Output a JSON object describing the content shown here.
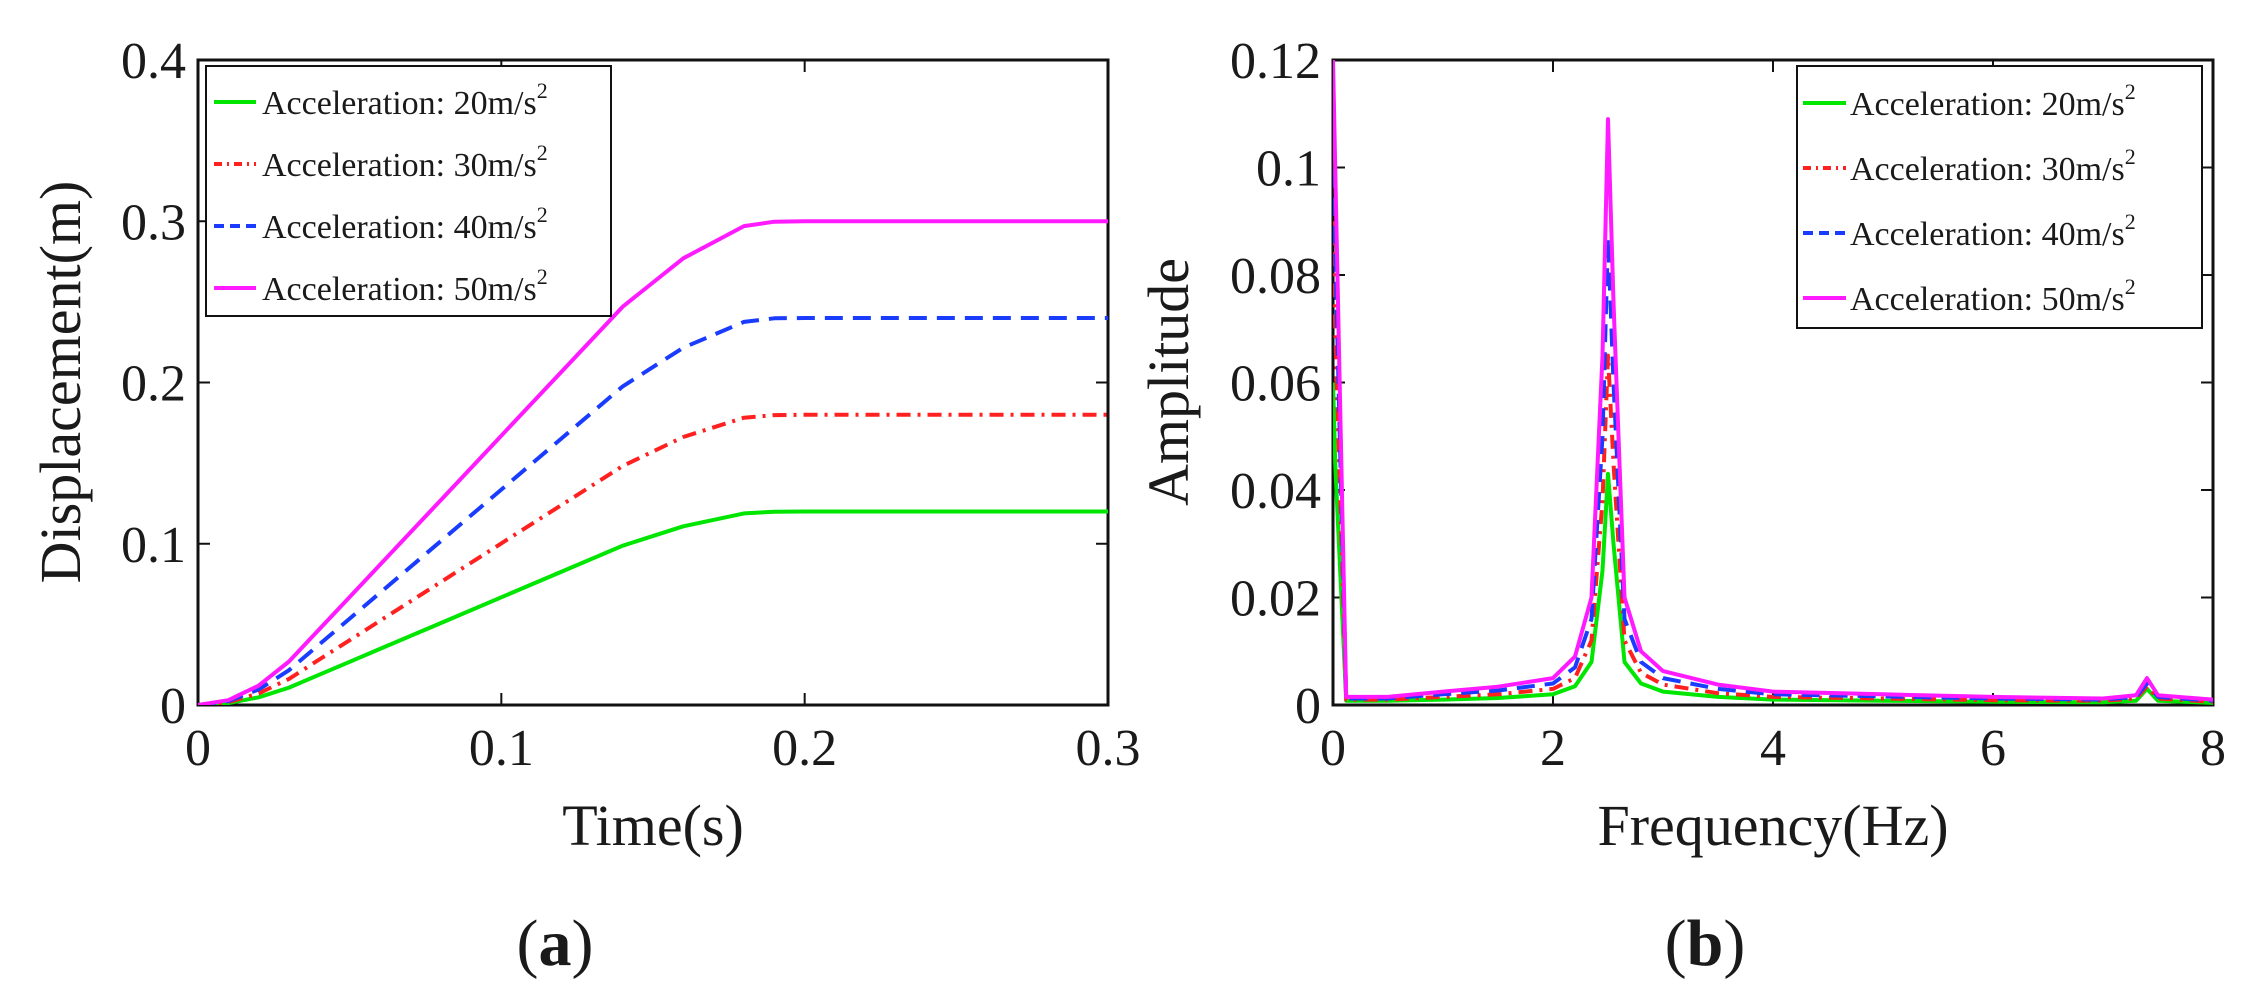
{
  "chart_data": [
    {
      "type": "line",
      "panel_label": "a",
      "xlabel": "Time(s)",
      "ylabel": "Displacement(m)",
      "xlim": [
        0,
        0.3
      ],
      "ylim": [
        0,
        0.4
      ],
      "xticks": [
        "0",
        "0.1",
        "0.2",
        "0.3"
      ],
      "yticks": [
        "0",
        "0.1",
        "0.2",
        "0.3",
        "0.4"
      ],
      "legend_position": "top-left",
      "series": [
        {
          "name": "Acceleration: 20m/s",
          "sup": "2",
          "color": "#00e600",
          "dash": "solid",
          "x": [
            0,
            0.01,
            0.02,
            0.03,
            0.04,
            0.05,
            0.06,
            0.08,
            0.1,
            0.12,
            0.14,
            0.16,
            0.18,
            0.19,
            0.2,
            0.22,
            0.25,
            0.3
          ],
          "y": [
            0,
            0.0012,
            0.0048,
            0.0108,
            0.0188,
            0.0268,
            0.0348,
            0.0508,
            0.0668,
            0.0828,
            0.0988,
            0.1108,
            0.1188,
            0.1199,
            0.12,
            0.12,
            0.12,
            0.12
          ]
        },
        {
          "name": "Acceleration: 30m/s",
          "sup": "2",
          "color": "#ff2020",
          "dash": "dashdot",
          "x": [
            0,
            0.01,
            0.02,
            0.03,
            0.04,
            0.05,
            0.06,
            0.08,
            0.1,
            0.12,
            0.14,
            0.16,
            0.18,
            0.19,
            0.2,
            0.22,
            0.25,
            0.3
          ],
          "y": [
            0,
            0.0018,
            0.0072,
            0.0162,
            0.0282,
            0.0402,
            0.0522,
            0.0762,
            0.1002,
            0.1242,
            0.1482,
            0.1662,
            0.1782,
            0.1798,
            0.18,
            0.18,
            0.18,
            0.18
          ]
        },
        {
          "name": "Acceleration: 40m/s",
          "sup": "2",
          "color": "#1a3cff",
          "dash": "dashed",
          "x": [
            0,
            0.01,
            0.02,
            0.03,
            0.04,
            0.05,
            0.06,
            0.08,
            0.1,
            0.12,
            0.14,
            0.16,
            0.18,
            0.19,
            0.2,
            0.22,
            0.25,
            0.3
          ],
          "y": [
            0,
            0.0024,
            0.0096,
            0.0216,
            0.0376,
            0.0536,
            0.0696,
            0.1016,
            0.1336,
            0.1656,
            0.1976,
            0.2216,
            0.2376,
            0.2398,
            0.24,
            0.24,
            0.24,
            0.24
          ]
        },
        {
          "name": "Acceleration: 50m/s",
          "sup": "2",
          "color": "#ff1aff",
          "dash": "solid",
          "x": [
            0,
            0.01,
            0.02,
            0.03,
            0.04,
            0.05,
            0.06,
            0.08,
            0.1,
            0.12,
            0.14,
            0.16,
            0.18,
            0.19,
            0.2,
            0.22,
            0.25,
            0.3
          ],
          "y": [
            0,
            0.003,
            0.012,
            0.027,
            0.047,
            0.067,
            0.087,
            0.127,
            0.167,
            0.207,
            0.247,
            0.277,
            0.297,
            0.2997,
            0.3,
            0.3,
            0.3,
            0.3
          ]
        }
      ]
    },
    {
      "type": "line",
      "panel_label": "b",
      "xlabel": "Frequency(Hz)",
      "ylabel": "Amplitude",
      "xlim": [
        0,
        8
      ],
      "ylim": [
        0,
        0.12
      ],
      "xticks": [
        "0",
        "2",
        "4",
        "6",
        "8"
      ],
      "yticks": [
        "0",
        "0.02",
        "0.04",
        "0.06",
        "0.08",
        "0.1",
        "0.12"
      ],
      "legend_position": "top-right",
      "series": [
        {
          "name": "Acceleration: 20m/s",
          "sup": "2",
          "color": "#00e600",
          "dash": "solid",
          "x": [
            0,
            0.02,
            0.12,
            0.5,
            1,
            1.5,
            2,
            2.2,
            2.35,
            2.45,
            2.5,
            2.55,
            2.65,
            2.8,
            3,
            3.5,
            4,
            5,
            6,
            7,
            7.3,
            7.4,
            7.5,
            8
          ],
          "y": [
            0.06,
            0.045,
            0.0008,
            0.0008,
            0.001,
            0.0013,
            0.002,
            0.0035,
            0.008,
            0.025,
            0.043,
            0.03,
            0.008,
            0.004,
            0.0025,
            0.0015,
            0.001,
            0.0008,
            0.0006,
            0.0005,
            0.0008,
            0.003,
            0.0008,
            0.0004
          ]
        },
        {
          "name": "Acceleration: 30m/s",
          "sup": "2",
          "color": "#ff2020",
          "dash": "dashdot",
          "x": [
            0,
            0.02,
            0.12,
            0.5,
            1,
            1.5,
            2,
            2.2,
            2.35,
            2.45,
            2.5,
            2.55,
            2.65,
            2.8,
            3,
            3.5,
            4,
            5,
            6,
            7,
            7.3,
            7.4,
            7.5,
            8
          ],
          "y": [
            0.09,
            0.07,
            0.001,
            0.001,
            0.0015,
            0.002,
            0.003,
            0.005,
            0.012,
            0.038,
            0.065,
            0.045,
            0.012,
            0.006,
            0.0038,
            0.0022,
            0.0015,
            0.0012,
            0.0009,
            0.0008,
            0.0012,
            0.0035,
            0.0012,
            0.0006
          ]
        },
        {
          "name": "Acceleration: 40m/s",
          "sup": "2",
          "color": "#1a3cff",
          "dash": "dashed",
          "x": [
            0,
            0.02,
            0.12,
            0.5,
            1,
            1.5,
            2,
            2.2,
            2.35,
            2.45,
            2.5,
            2.55,
            2.65,
            2.8,
            3,
            3.5,
            4,
            5,
            6,
            7,
            7.3,
            7.4,
            7.5,
            8
          ],
          "y": [
            0.11,
            0.085,
            0.0012,
            0.0012,
            0.002,
            0.0027,
            0.004,
            0.007,
            0.016,
            0.05,
            0.087,
            0.06,
            0.016,
            0.008,
            0.005,
            0.003,
            0.002,
            0.0016,
            0.0012,
            0.001,
            0.0015,
            0.004,
            0.0015,
            0.0008
          ]
        },
        {
          "name": "Acceleration: 50m/s",
          "sup": "2",
          "color": "#ff1aff",
          "dash": "solid",
          "x": [
            0,
            0.02,
            0.12,
            0.5,
            1,
            1.5,
            2,
            2.2,
            2.35,
            2.45,
            2.5,
            2.55,
            2.65,
            2.8,
            3,
            3.5,
            4,
            5,
            6,
            7,
            7.3,
            7.4,
            7.5,
            8
          ],
          "y": [
            0.12,
            0.1,
            0.0015,
            0.0015,
            0.0025,
            0.0034,
            0.005,
            0.009,
            0.02,
            0.065,
            0.109,
            0.075,
            0.02,
            0.01,
            0.0063,
            0.0038,
            0.0025,
            0.002,
            0.0015,
            0.0012,
            0.0018,
            0.005,
            0.0018,
            0.001
          ]
        }
      ]
    }
  ]
}
